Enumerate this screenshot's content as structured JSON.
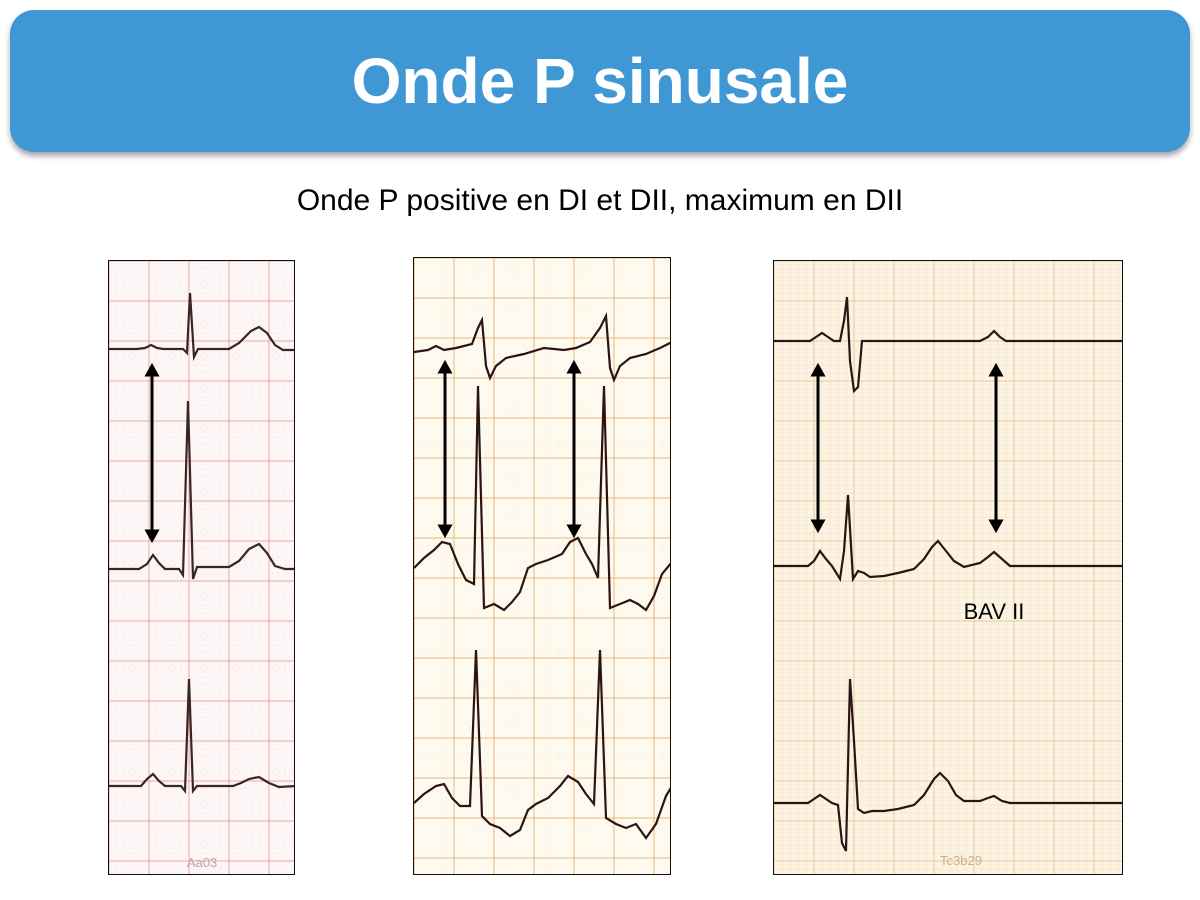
{
  "slide": {
    "title": "Onde P sinusale",
    "subtitle": "Onde P positive en DI et DII, maximum en DII"
  },
  "panels": [
    {
      "code": "Aa03",
      "label": "",
      "grid_color": "#e8a0a0",
      "background": "#fdf6f6"
    },
    {
      "code": "",
      "label": "",
      "grid_color": "#e8b070",
      "background": "#fffaf0"
    },
    {
      "code": "Tc3b29",
      "label": "BAV II",
      "grid_color": "#e6c79a",
      "background": "#fdf3e3"
    }
  ],
  "colors": {
    "banner": "#3f97d4",
    "trace": "#3a2424"
  }
}
